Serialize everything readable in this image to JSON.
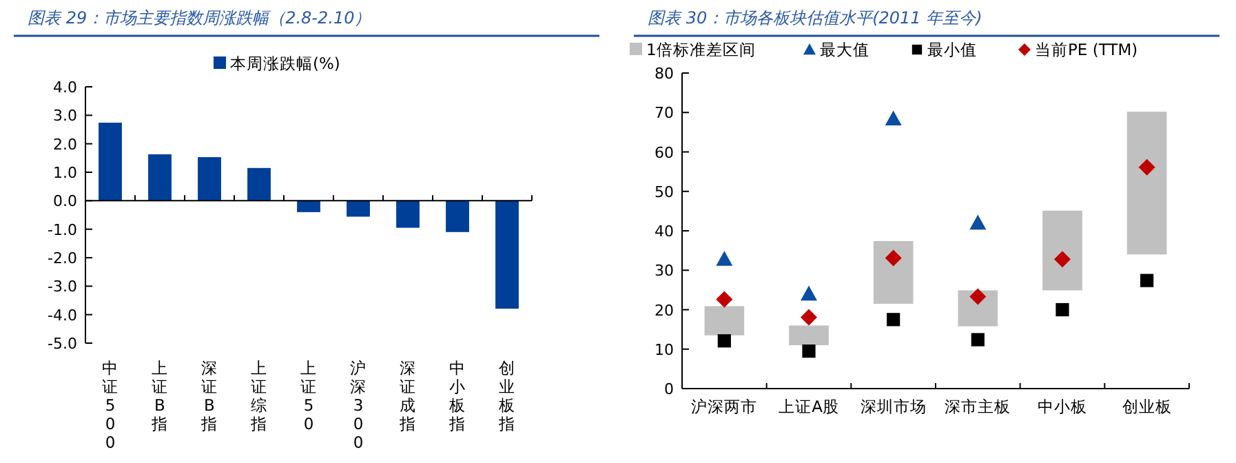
{
  "chart_data": [
    {
      "type": "bar",
      "title": "图表 29：市场主要指数周涨跌幅（2.8-2.10）",
      "categories": [
        "中证500",
        "上证B指",
        "深证B指",
        "上证综指",
        "上证50",
        "沪深300",
        "深证成指",
        "中小板指",
        "创业板指"
      ],
      "series": [
        {
          "name": "本周涨跌幅(%)",
          "color": "#003f98",
          "values": [
            2.74,
            1.63,
            1.53,
            1.15,
            -0.4,
            -0.56,
            -0.95,
            -1.1,
            -3.79
          ]
        }
      ],
      "ylim": [
        -5,
        4
      ],
      "yticks": [
        {
          "value": -5,
          "label": "-5.0"
        },
        {
          "value": -4,
          "label": "-4.0"
        },
        {
          "value": -3,
          "label": "-3.0"
        },
        {
          "value": -2,
          "label": "-2.0"
        },
        {
          "value": -1,
          "label": "-1.0"
        },
        {
          "value": 0,
          "label": "0.0"
        },
        {
          "value": 1,
          "label": "1.0"
        },
        {
          "value": 2,
          "label": "2.0"
        },
        {
          "value": 3,
          "label": "3.0"
        },
        {
          "value": 4,
          "label": "4.0"
        }
      ],
      "legend": "top"
    },
    {
      "type": "bar",
      "title": "图表 30：市场各板块估值水平(2011 年至今)",
      "categories": [
        "沪深两市",
        "上证A股",
        "深圳市场",
        "深市主板",
        "中小板",
        "创业板"
      ],
      "series": [
        {
          "name": "1倍标准差区间",
          "type": "bar",
          "color": "#c0c0c0",
          "base": [
            13.5,
            11.0,
            21.5,
            15.8,
            24.9,
            34.0
          ],
          "values": [
            7.4,
            5.0,
            15.9,
            9.1,
            20.2,
            36.2
          ]
        },
        {
          "name": "最大值",
          "type": "scatter",
          "marker": "triangle",
          "color": "#0b4ea2",
          "values": [
            32.8,
            24.0,
            68.4,
            42.0,
            null,
            null
          ]
        },
        {
          "name": "最小值",
          "type": "scatter",
          "marker": "square",
          "color": "#000000",
          "values": [
            12.1,
            9.5,
            17.5,
            12.4,
            20.0,
            27.4
          ]
        },
        {
          "name": "当前PE (TTM)",
          "type": "scatter",
          "marker": "diamond",
          "color": "#c00000",
          "values": [
            22.6,
            18.1,
            33.1,
            23.3,
            32.8,
            56.1
          ]
        }
      ],
      "ylim": [
        0,
        80
      ],
      "yticks": [
        0,
        10,
        20,
        30,
        40,
        50,
        60,
        70,
        80
      ],
      "legend": "top",
      "grid": false
    }
  ]
}
